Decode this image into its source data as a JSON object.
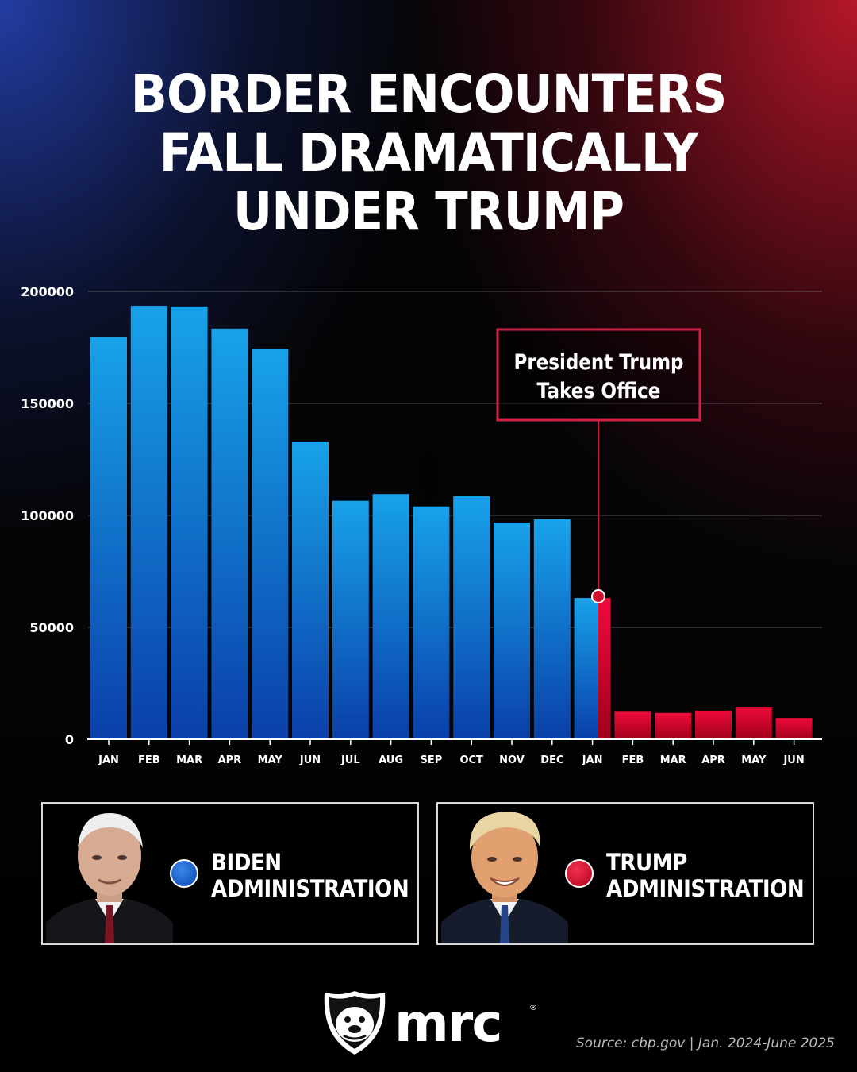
{
  "title_lines": [
    "BORDER ENCOUNTERS",
    "FALL DRAMATICALLY",
    "UNDER TRUMP"
  ],
  "colors": {
    "biden_top": "#18a2ea",
    "biden_bottom": "#0a3fa8",
    "trump_top": "#ef0b3b",
    "trump_bottom": "#a0001c",
    "callout_border": "#d81e45",
    "gridline": "#8a8a8a",
    "text": "#ffffff",
    "source_text": "#b9b9b9"
  },
  "chart_data": {
    "type": "bar",
    "title": "BORDER ENCOUNTERS FALL DRAMATICALLY UNDER TRUMP",
    "xlabel": "",
    "ylabel": "",
    "ylim": [
      0,
      200000
    ],
    "yticks": [
      0,
      50000,
      100000,
      150000,
      200000
    ],
    "ytick_labels": [
      "0",
      "50000",
      "100000",
      "150000",
      "200000"
    ],
    "grid": true,
    "categories": [
      "JAN",
      "FEB",
      "MAR",
      "APR",
      "MAY",
      "JUN",
      "JUL",
      "AUG",
      "SEP",
      "OCT",
      "NOV",
      "DEC",
      "JAN",
      "FEB",
      "MAR",
      "APR",
      "MAY",
      "JUN"
    ],
    "values": [
      179700,
      193600,
      193300,
      183400,
      174300,
      133000,
      106500,
      109500,
      104000,
      108500,
      96800,
      98300,
      63100,
      12300,
      11800,
      12800,
      14500,
      9500
    ],
    "split_jan_2025": {
      "biden": 63100,
      "trump": 63100
    },
    "series_assignment": [
      "biden",
      "biden",
      "biden",
      "biden",
      "biden",
      "biden",
      "biden",
      "biden",
      "biden",
      "biden",
      "biden",
      "biden",
      "split",
      "trump",
      "trump",
      "trump",
      "trump",
      "trump"
    ],
    "annotation": {
      "lines": [
        "President Trump",
        "Takes Office"
      ],
      "category_index": 12,
      "value": 63100
    },
    "legend": [
      {
        "name": "BIDEN ADMINISTRATION",
        "color": "#0b47b8"
      },
      {
        "name": "TRUMP ADMINISTRATION",
        "color": "#d0002a"
      }
    ]
  },
  "legend": {
    "biden": {
      "line1": "BIDEN",
      "line2": "ADMINISTRATION"
    },
    "trump": {
      "line1": "TRUMP",
      "line2": "ADMINISTRATION"
    }
  },
  "brand": {
    "name": "mrc",
    "reg_mark": "®"
  },
  "source": "Source: cbp.gov |  Jan. 2024-June 2025"
}
